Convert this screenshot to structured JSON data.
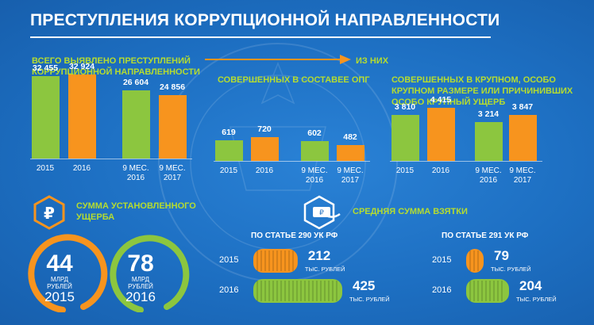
{
  "title": "ПРЕСТУПЛЕНИЯ КОРРУПЦИОННОЙ НАПРАВЛЕННОСТИ",
  "sections": {
    "total_heading_1": "ВСЕГО ВЫЯВЛЕНО ПРЕСТУПЛЕНИЙ",
    "total_heading_2": "КОРРУПЦИОННОЙ НАПРАВЛЕННОСТИ",
    "of_them": "ИЗ НИХ",
    "opg_heading": "СОВЕРШЕННЫХ В СОСТАВЕЕ ОПГ",
    "large_heading_1": "СОВЕРШЕННЫХ В КРУПНОМ, ОСОБО",
    "large_heading_2": "КРУПНОМ РАЗМЕРЕ  ИЛИ ПРИЧИНИВШИХ",
    "large_heading_3": "ОСОБО КРУПНЫЙ УЩЕРБ"
  },
  "chart_data": [
    {
      "type": "bar",
      "title": "ВСЕГО ВЫЯВЛЕНО ПРЕСТУПЛЕНИЙ КОРРУПЦИОННОЙ НАПРАВЛЕННОСТИ",
      "categories": [
        "2015",
        "2016",
        "9 МЕС. 2016",
        "9 МЕС. 2017"
      ],
      "values": [
        32455,
        32924,
        26604,
        24856
      ],
      "value_labels": [
        "32 455",
        "32 924",
        "26 604",
        "24 856"
      ],
      "colors": [
        "#8cc63f",
        "#f7941e",
        "#8cc63f",
        "#f7941e"
      ],
      "ylim": [
        0,
        32924
      ]
    },
    {
      "type": "bar",
      "title": "СОВЕРШЕННЫХ В СОСТАВЕЕ ОПГ",
      "categories": [
        "2015",
        "2016",
        "9 МЕС. 2016",
        "9 МЕС. 2017"
      ],
      "values": [
        619,
        720,
        602,
        482
      ],
      "value_labels": [
        "619",
        "720",
        "602",
        "482"
      ],
      "colors": [
        "#8cc63f",
        "#f7941e",
        "#8cc63f",
        "#f7941e"
      ],
      "ylim": [
        0,
        1000
      ]
    },
    {
      "type": "bar",
      "title": "СОВЕРШЕННЫХ В КРУПНОМ, ОСОБО КРУПНОМ РАЗМЕРЕ  ИЛИ ПРИЧИНИВШИХ ОСОБО КРУПНЫЙ УЩЕРБ",
      "categories": [
        "2015",
        "2016",
        "9 МЕС. 2016",
        "9 МЕС. 2017"
      ],
      "values": [
        3810,
        4415,
        3214,
        3847
      ],
      "value_labels": [
        "3 810",
        "4 415",
        "3 214",
        "3 847"
      ],
      "colors": [
        "#8cc63f",
        "#f7941e",
        "#8cc63f",
        "#f7941e"
      ],
      "ylim": [
        0,
        5000
      ]
    }
  ],
  "damage": {
    "heading_1": "СУММА УСТАНОВЛЕННОГО",
    "heading_2": "УЩЕРБА",
    "items": [
      {
        "value": "44",
        "unit_1": "МЛРД",
        "unit_2": "РУБЛЕЙ",
        "year": "2015",
        "color": "#f7941e"
      },
      {
        "value": "78",
        "unit_1": "МЛРД",
        "unit_2": "РУБЛЕЙ",
        "year": "2016",
        "color": "#8cc63f"
      }
    ]
  },
  "bribe": {
    "heading": "СРЕДНЯЯ СУММА ВЗЯТКИ",
    "groups": [
      {
        "title": "ПО СТАТЬЕ 290 УК РФ",
        "rows": [
          {
            "year": "2015",
            "value": "212",
            "unit": "ТЫС. РУБЛЕЙ",
            "color": "#f7941e"
          },
          {
            "year": "2016",
            "value": "425",
            "unit": "ТЫС. РУБЛЕЙ",
            "color": "#8cc63f"
          }
        ]
      },
      {
        "title": "ПО СТАТЬЕ 291 УК РФ",
        "rows": [
          {
            "year": "2015",
            "value": "79",
            "unit": "ТЫС. РУБЛЕЙ",
            "color": "#f7941e"
          },
          {
            "year": "2016",
            "value": "204",
            "unit": "ТЫС. РУБЛЕЙ",
            "color": "#8cc63f"
          }
        ]
      }
    ]
  },
  "icons": {
    "ruble": "ruble-icon",
    "bribe": "bribe-hand-icon",
    "arrow": "arrow-right-icon"
  }
}
